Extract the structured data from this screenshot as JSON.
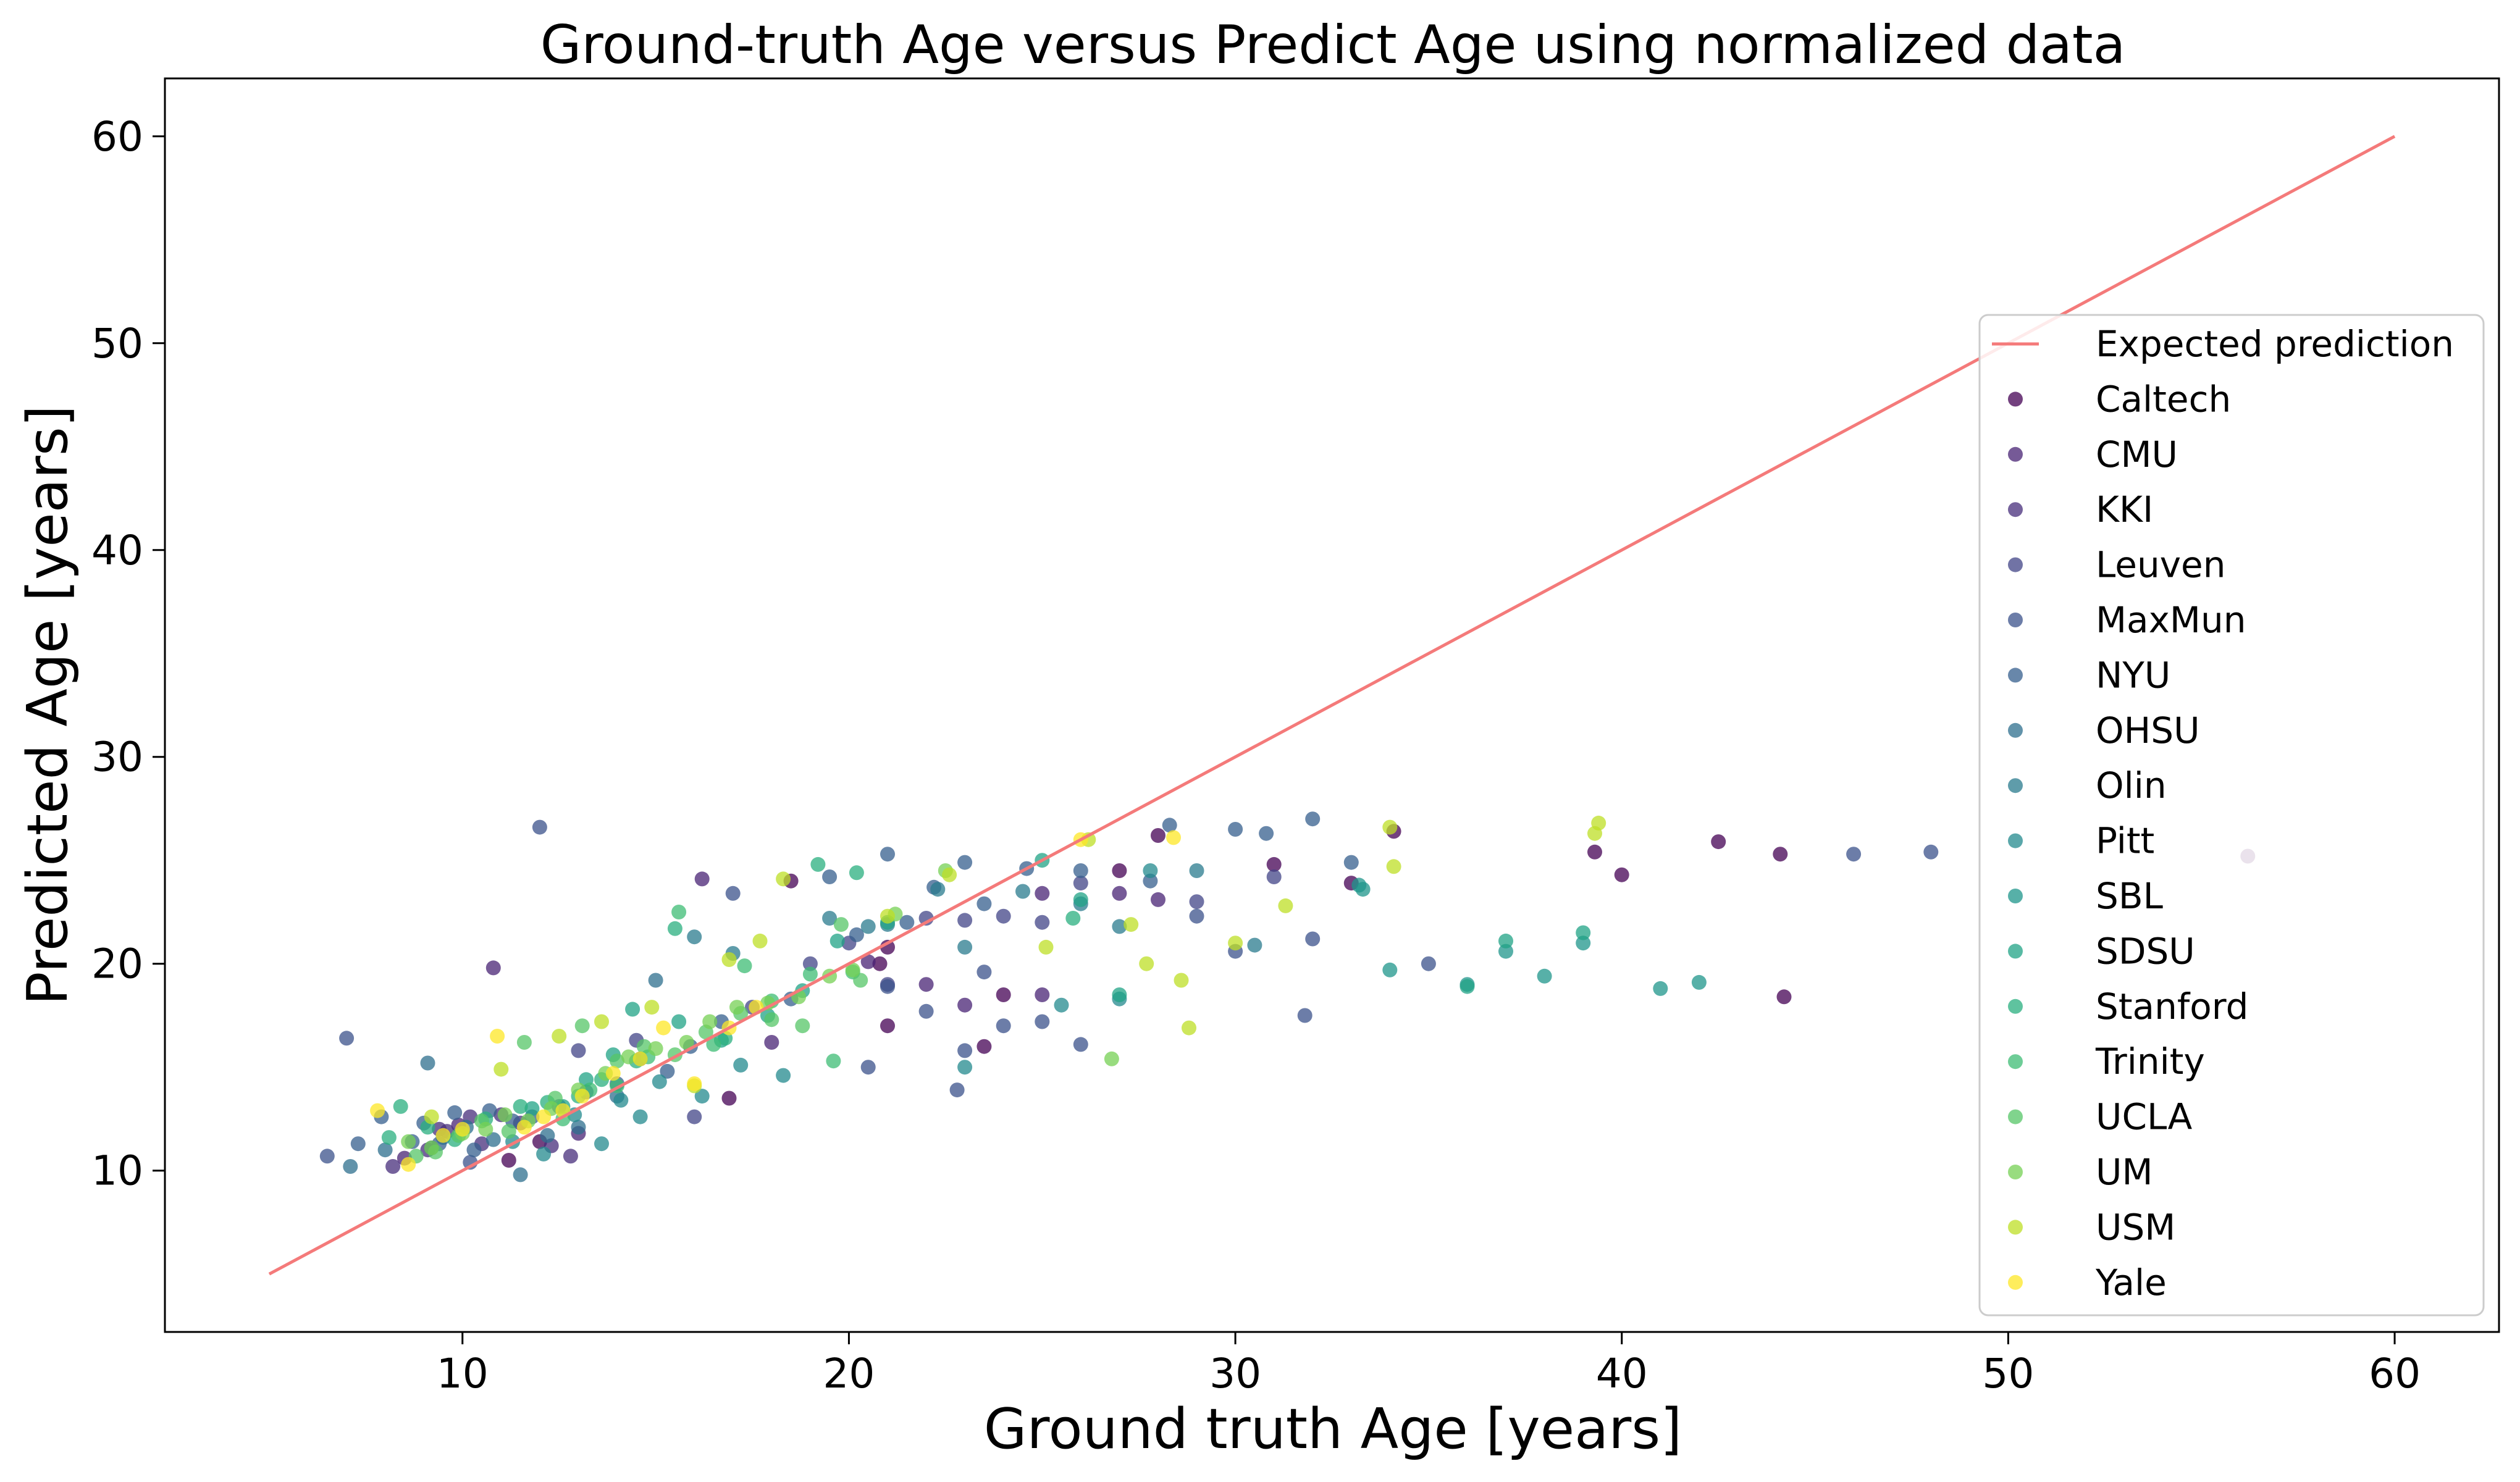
{
  "chart_data": {
    "type": "scatter",
    "title": "Ground-truth Age versus Predict Age using normalized data",
    "xlabel": "Ground truth Age [years]",
    "ylabel": "Predicted Age [years]",
    "xlim": [
      2.3,
      62.7
    ],
    "ylim": [
      2.2,
      62.8
    ],
    "xticks": [
      10,
      20,
      30,
      40,
      50,
      60
    ],
    "yticks": [
      10,
      20,
      30,
      40,
      50,
      60
    ],
    "grid": false,
    "legend_position": "right",
    "reference_line": {
      "name": "Expected prediction",
      "color": "#f47a7a",
      "x": [
        5,
        60
      ],
      "y": [
        5,
        60
      ]
    },
    "series": [
      {
        "name": "Caltech",
        "color": "#440154",
        "points": [
          [
            11.2,
            10.5
          ],
          [
            12.0,
            11.4
          ],
          [
            16.9,
            13.5
          ],
          [
            18.5,
            24.0
          ],
          [
            20.8,
            20.0
          ],
          [
            21.0,
            17.0
          ],
          [
            21.0,
            20.8
          ],
          [
            23.5,
            16.0
          ],
          [
            24.0,
            18.5
          ],
          [
            27.0,
            24.5
          ],
          [
            28.0,
            26.2
          ],
          [
            31.0,
            24.8
          ],
          [
            33.0,
            23.9
          ],
          [
            34.1,
            26.4
          ],
          [
            39.3,
            25.4
          ],
          [
            40.0,
            24.3
          ],
          [
            42.5,
            25.9
          ],
          [
            44.1,
            25.3
          ],
          [
            44.2,
            18.4
          ],
          [
            56.2,
            25.2
          ]
        ]
      },
      {
        "name": "CMU",
        "color": "#482374",
        "points": [
          [
            8.5,
            10.6
          ],
          [
            9.9,
            12.2
          ],
          [
            10.8,
            19.8
          ],
          [
            13.0,
            11.8
          ],
          [
            16.2,
            24.1
          ],
          [
            18.0,
            16.2
          ],
          [
            20.5,
            20.1
          ],
          [
            22.0,
            19.0
          ],
          [
            23.0,
            18.0
          ],
          [
            25.0,
            23.4
          ],
          [
            25.0,
            18.5
          ],
          [
            27.0,
            23.4
          ],
          [
            28.0,
            23.1
          ]
        ]
      },
      {
        "name": "KKI",
        "color": "#472d7b",
        "points": [
          [
            8.2,
            10.2
          ],
          [
            9.1,
            11.0
          ],
          [
            9.6,
            11.9
          ],
          [
            10.2,
            12.6
          ],
          [
            10.5,
            11.3
          ],
          [
            11.0,
            12.7
          ],
          [
            11.5,
            12.3
          ],
          [
            12.3,
            11.2
          ],
          [
            12.8,
            10.7
          ],
          [
            9.4,
            12.0
          ]
        ]
      },
      {
        "name": "Leuven",
        "color": "#414487",
        "points": [
          [
            13.0,
            15.8
          ],
          [
            14.5,
            16.3
          ],
          [
            16.0,
            12.6
          ],
          [
            17.5,
            17.9
          ],
          [
            19.0,
            20.0
          ],
          [
            20.0,
            21.0
          ],
          [
            21.0,
            19.0
          ],
          [
            22.0,
            22.2
          ],
          [
            23.0,
            22.1
          ],
          [
            24.0,
            22.3
          ],
          [
            25.0,
            22.0
          ],
          [
            26.0,
            23.9
          ],
          [
            29.0,
            23.0
          ],
          [
            31.0,
            24.2
          ]
        ]
      },
      {
        "name": "MaxMun",
        "color": "#3b528b",
        "points": [
          [
            6.5,
            10.7
          ],
          [
            7.0,
            16.4
          ],
          [
            9.2,
            11.1
          ],
          [
            10.2,
            10.4
          ],
          [
            12.0,
            26.6
          ],
          [
            17.0,
            23.4
          ],
          [
            20.5,
            15.0
          ],
          [
            21.0,
            18.9
          ],
          [
            22.0,
            17.7
          ],
          [
            22.8,
            13.9
          ],
          [
            23.0,
            15.8
          ],
          [
            23.5,
            19.6
          ],
          [
            24.0,
            17.0
          ],
          [
            25.0,
            17.2
          ],
          [
            26.0,
            16.1
          ],
          [
            29.0,
            22.3
          ],
          [
            30.0,
            20.6
          ],
          [
            31.8,
            17.5
          ],
          [
            32.0,
            21.2
          ],
          [
            35.0,
            20.0
          ],
          [
            46.0,
            25.3
          ],
          [
            48.0,
            25.4
          ]
        ]
      },
      {
        "name": "NYU",
        "color": "#355f8d",
        "points": [
          [
            7.3,
            11.3
          ],
          [
            7.9,
            12.6
          ],
          [
            8.7,
            11.4
          ],
          [
            9.0,
            12.3
          ],
          [
            9.4,
            11.3
          ],
          [
            9.8,
            12.8
          ],
          [
            10.3,
            11.0
          ],
          [
            10.7,
            12.9
          ],
          [
            11.3,
            12.4
          ],
          [
            11.8,
            12.6
          ],
          [
            12.5,
            13.1
          ],
          [
            13.2,
            13.8
          ],
          [
            14.0,
            14.2
          ],
          [
            14.6,
            15.4
          ],
          [
            15.3,
            14.8
          ],
          [
            15.9,
            16.0
          ],
          [
            16.7,
            17.2
          ],
          [
            18.5,
            18.3
          ],
          [
            19.5,
            24.2
          ],
          [
            20.2,
            21.4
          ],
          [
            21.0,
            25.3
          ],
          [
            21.5,
            22.0
          ],
          [
            22.2,
            23.7
          ],
          [
            23.0,
            24.9
          ],
          [
            23.5,
            22.9
          ],
          [
            24.6,
            24.6
          ],
          [
            26.0,
            24.5
          ],
          [
            27.8,
            24.0
          ],
          [
            28.3,
            26.7
          ],
          [
            30.0,
            26.5
          ],
          [
            30.8,
            26.3
          ],
          [
            32.0,
            27.0
          ],
          [
            33.0,
            24.9
          ]
        ]
      },
      {
        "name": "OHSU",
        "color": "#2e6f8e",
        "points": [
          [
            7.1,
            10.2
          ],
          [
            8.0,
            11.0
          ],
          [
            9.1,
            15.2
          ],
          [
            9.5,
            11.6
          ],
          [
            10.1,
            12.1
          ],
          [
            10.8,
            11.5
          ],
          [
            11.5,
            9.8
          ],
          [
            12.2,
            11.7
          ],
          [
            13.0,
            12.1
          ],
          [
            14.0,
            13.6
          ],
          [
            15.0,
            19.2
          ]
        ]
      },
      {
        "name": "Olin",
        "color": "#297b8e",
        "points": [
          [
            16.0,
            21.3
          ],
          [
            17.0,
            20.5
          ],
          [
            19.5,
            22.2
          ],
          [
            20.5,
            21.8
          ],
          [
            21.0,
            21.9
          ],
          [
            22.3,
            23.6
          ],
          [
            23.0,
            20.8
          ],
          [
            24.5,
            23.5
          ],
          [
            26.0,
            22.9
          ],
          [
            27.0,
            21.8
          ],
          [
            29.0,
            24.5
          ],
          [
            30.5,
            20.9
          ]
        ]
      },
      {
        "name": "Pitt",
        "color": "#23898e",
        "points": [
          [
            11.3,
            11.4
          ],
          [
            12.1,
            10.8
          ],
          [
            12.9,
            12.7
          ],
          [
            13.6,
            11.3
          ],
          [
            14.1,
            13.4
          ],
          [
            14.6,
            12.6
          ],
          [
            15.1,
            14.3
          ],
          [
            16.2,
            13.6
          ],
          [
            17.2,
            15.1
          ],
          [
            18.3,
            14.6
          ],
          [
            23.0,
            15.0
          ],
          [
            25.5,
            18.0
          ],
          [
            27.0,
            18.3
          ],
          [
            27.8,
            24.5
          ]
        ]
      },
      {
        "name": "SBL",
        "color": "#1f968b",
        "points": [
          [
            33.2,
            23.8
          ],
          [
            33.3,
            23.6
          ],
          [
            34.0,
            19.7
          ],
          [
            36.0,
            19.0
          ],
          [
            37.0,
            20.6
          ],
          [
            38.0,
            19.4
          ],
          [
            39.0,
            21.0
          ],
          [
            41.0,
            18.8
          ],
          [
            42.0,
            19.1
          ]
        ]
      },
      {
        "name": "SDSU",
        "color": "#20a386",
        "points": [
          [
            11.8,
            13.0
          ],
          [
            12.6,
            13.1
          ],
          [
            13.2,
            14.4
          ],
          [
            13.9,
            15.6
          ],
          [
            14.4,
            17.8
          ],
          [
            15.6,
            17.2
          ],
          [
            16.7,
            16.3
          ],
          [
            17.9,
            17.5
          ],
          [
            18.8,
            18.7
          ],
          [
            19.7,
            21.1
          ],
          [
            21.0,
            22.0
          ],
          [
            25.0,
            25.0
          ],
          [
            26.0,
            23.1
          ],
          [
            27.0,
            18.5
          ],
          [
            36.0,
            18.9
          ],
          [
            37.0,
            21.1
          ],
          [
            39.0,
            21.5
          ]
        ]
      },
      {
        "name": "Stanford",
        "color": "#29af7f",
        "points": [
          [
            8.1,
            11.6
          ],
          [
            8.4,
            13.1
          ],
          [
            9.1,
            12.1
          ],
          [
            9.8,
            11.5
          ],
          [
            10.6,
            12.5
          ],
          [
            11.5,
            13.1
          ],
          [
            12.2,
            13.3
          ],
          [
            13.0,
            13.6
          ],
          [
            13.6,
            14.4
          ],
          [
            14.5,
            15.3
          ],
          [
            15.5,
            21.7
          ],
          [
            16.8,
            16.4
          ],
          [
            19.2,
            24.8
          ],
          [
            20.2,
            24.4
          ],
          [
            25.8,
            22.2
          ]
        ]
      },
      {
        "name": "Trinity",
        "color": "#3dbc74",
        "points": [
          [
            12.6,
            12.5
          ],
          [
            13.3,
            13.9
          ],
          [
            14.0,
            14.1
          ],
          [
            14.8,
            15.5
          ],
          [
            15.6,
            22.5
          ],
          [
            16.5,
            16.1
          ],
          [
            17.3,
            19.9
          ],
          [
            18.0,
            18.2
          ],
          [
            19.0,
            19.5
          ],
          [
            19.6,
            15.3
          ],
          [
            20.1,
            19.6
          ]
        ]
      },
      {
        "name": "UCLA",
        "color": "#56c667",
        "points": [
          [
            8.8,
            10.7
          ],
          [
            9.3,
            10.9
          ],
          [
            9.9,
            11.7
          ],
          [
            10.5,
            12.4
          ],
          [
            11.2,
            11.9
          ],
          [
            11.6,
            16.2
          ],
          [
            12.4,
            13.5
          ],
          [
            13.1,
            17.0
          ],
          [
            14.0,
            15.3
          ],
          [
            14.7,
            16.0
          ],
          [
            15.5,
            15.6
          ],
          [
            16.3,
            16.7
          ],
          [
            17.2,
            17.6
          ],
          [
            18.0,
            17.3
          ],
          [
            18.8,
            17.0
          ],
          [
            19.8,
            21.9
          ],
          [
            20.3,
            19.2
          ]
        ]
      },
      {
        "name": "UM",
        "color": "#75d054",
        "points": [
          [
            8.6,
            11.4
          ],
          [
            9.2,
            11.1
          ],
          [
            10.0,
            11.8
          ],
          [
            10.6,
            12.0
          ],
          [
            11.1,
            12.7
          ],
          [
            11.7,
            12.4
          ],
          [
            12.3,
            13.0
          ],
          [
            13.0,
            13.9
          ],
          [
            13.7,
            14.7
          ],
          [
            14.3,
            15.5
          ],
          [
            15.0,
            15.9
          ],
          [
            15.8,
            16.2
          ],
          [
            16.4,
            17.2
          ],
          [
            17.1,
            17.9
          ],
          [
            17.9,
            18.1
          ],
          [
            18.7,
            18.4
          ],
          [
            19.5,
            19.4
          ],
          [
            20.1,
            19.7
          ],
          [
            21.2,
            22.4
          ],
          [
            22.5,
            24.5
          ],
          [
            26.8,
            15.4
          ]
        ]
      },
      {
        "name": "USM",
        "color": "#bddf26",
        "points": [
          [
            9.2,
            12.6
          ],
          [
            11.0,
            14.9
          ],
          [
            12.5,
            16.5
          ],
          [
            13.6,
            17.2
          ],
          [
            14.9,
            17.9
          ],
          [
            16.0,
            14.1
          ],
          [
            16.9,
            20.2
          ],
          [
            17.7,
            21.1
          ],
          [
            18.3,
            24.1
          ],
          [
            21.0,
            22.3
          ],
          [
            22.6,
            24.3
          ],
          [
            25.1,
            20.8
          ],
          [
            26.2,
            26.0
          ],
          [
            27.3,
            21.9
          ],
          [
            27.7,
            20.0
          ],
          [
            28.6,
            19.2
          ],
          [
            28.8,
            16.9
          ],
          [
            30.0,
            21.0
          ],
          [
            31.3,
            22.8
          ],
          [
            34.0,
            26.6
          ],
          [
            34.1,
            24.7
          ],
          [
            39.3,
            26.3
          ],
          [
            39.4,
            26.8
          ]
        ]
      },
      {
        "name": "Yale",
        "color": "#fde725",
        "points": [
          [
            7.8,
            12.9
          ],
          [
            8.6,
            10.3
          ],
          [
            9.5,
            11.7
          ],
          [
            10.0,
            12.0
          ],
          [
            10.9,
            16.5
          ],
          [
            11.6,
            12.1
          ],
          [
            12.1,
            12.6
          ],
          [
            12.6,
            12.9
          ],
          [
            13.1,
            13.6
          ],
          [
            13.9,
            14.7
          ],
          [
            14.6,
            15.4
          ],
          [
            15.2,
            16.9
          ],
          [
            16.0,
            14.2
          ],
          [
            16.9,
            16.9
          ],
          [
            17.6,
            17.9
          ],
          [
            26.0,
            26.0
          ],
          [
            28.4,
            26.1
          ]
        ]
      }
    ]
  }
}
